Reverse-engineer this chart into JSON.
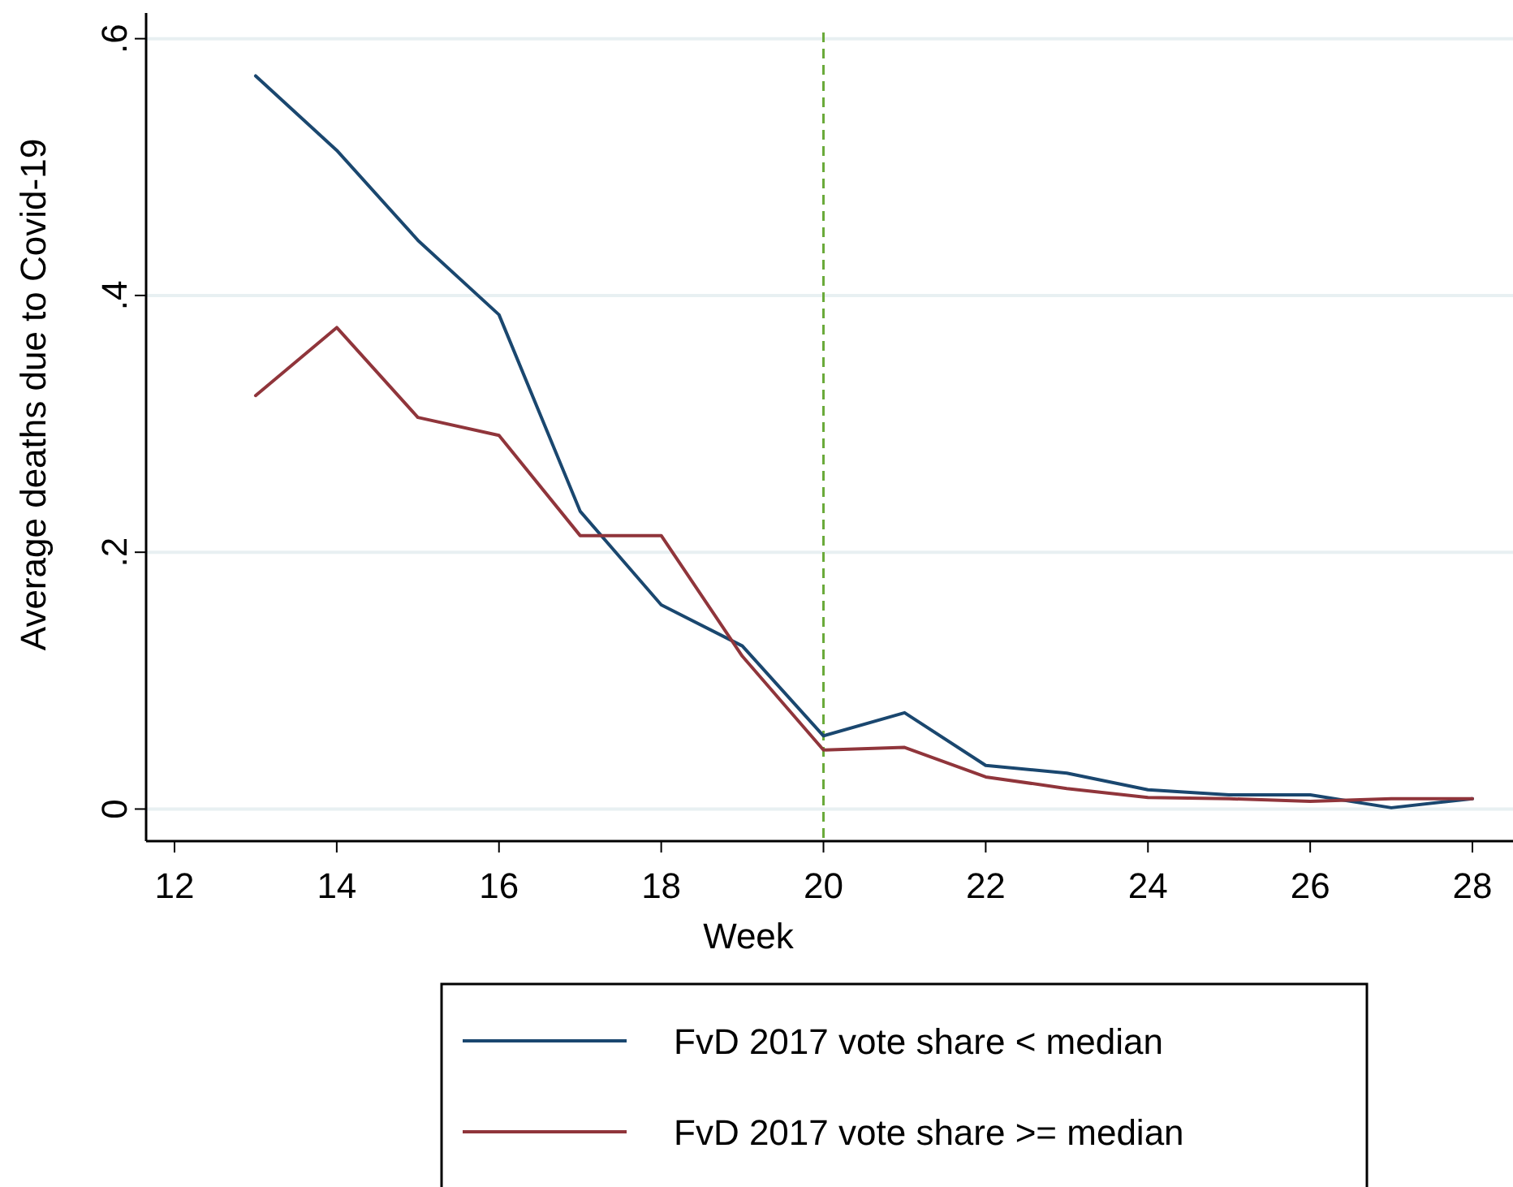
{
  "chart_data": {
    "type": "line",
    "xlabel": "Week",
    "ylabel": "Average deaths due to Covid-19",
    "x": [
      13,
      14,
      15,
      16,
      17,
      18,
      19,
      20,
      21,
      22,
      23,
      24,
      25,
      26,
      27,
      28
    ],
    "series": [
      {
        "name": "FvD 2017 vote share < median",
        "color": "#1a476f",
        "values": [
          0.571,
          0.513,
          0.443,
          0.385,
          0.232,
          0.159,
          0.127,
          0.057,
          0.075,
          0.034,
          0.028,
          0.015,
          0.011,
          0.011,
          0.001,
          0.008
        ]
      },
      {
        "name": "FvD 2017 vote share >= median",
        "color": "#90353b",
        "values": [
          0.322,
          0.375,
          0.305,
          0.291,
          0.213,
          0.213,
          0.119,
          0.046,
          0.048,
          0.025,
          0.016,
          0.009,
          0.008,
          0.006,
          0.008,
          0.008
        ]
      }
    ],
    "xlim": [
      11.65,
      28.5
    ],
    "xticks": [
      12,
      14,
      16,
      18,
      20,
      22,
      24,
      26,
      28
    ],
    "ylim": [
      -0.025,
      0.62
    ],
    "yticks": [
      {
        "value": 0,
        "label": "0"
      },
      {
        "value": 0.2,
        "label": ".2"
      },
      {
        "value": 0.4,
        "label": ".4"
      },
      {
        "value": 0.6,
        "label": ".6"
      }
    ],
    "grid": "y",
    "legend": "bottom",
    "marker": "none",
    "line_style": "solid",
    "ref_lines": [
      {
        "axis": "x",
        "value": 20,
        "color": "#6aaa3a",
        "line_style": "dashed"
      }
    ]
  }
}
